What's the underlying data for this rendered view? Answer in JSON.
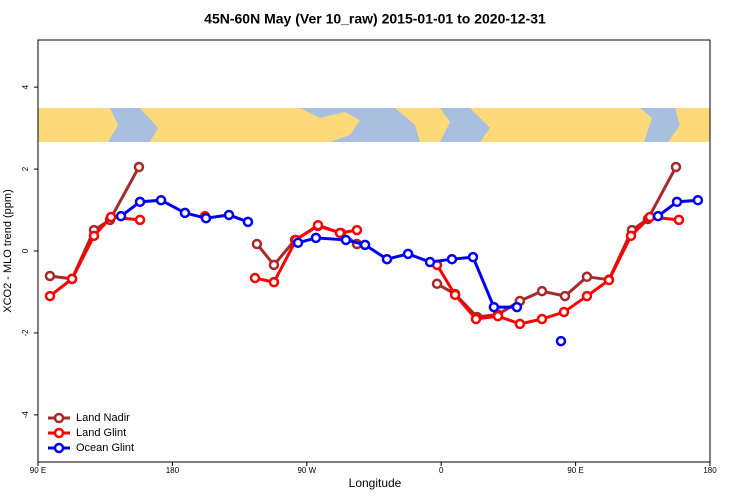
{
  "chart_data": {
    "type": "line",
    "title": "45N-60N May (Ver 10_raw)   2015-01-01 to 2020-12-31",
    "xlabel": "Longitude",
    "ylabel": "XCO2 - MLO trend (ppm)",
    "xlim": [
      90,
      540
    ],
    "ylim": [
      -5.15,
      5.15
    ],
    "xticks": [
      {
        "value": 90,
        "label": "90 E"
      },
      180,
      {
        "value": 270,
        "label": "90 W"
      },
      {
        "value": 360,
        "label": "0"
      },
      {
        "value": 450,
        "label": "90 E"
      },
      {
        "value": 540,
        "label": "180"
      }
    ],
    "yticks": [
      -4,
      -2,
      0,
      2,
      4
    ],
    "legend": "bottom-left",
    "grid": false,
    "series": [
      {
        "name": "Land Nadir",
        "color": "#a52a2a",
        "x": [
          98.0,
          112.8,
          127.5,
          138.2,
          157.6,
          null,
          236.6,
          248.0,
          262.1,
          277.5,
          292.9,
          303.6,
          null,
          357.2,
          369.3,
          384.0,
          398.0,
          412.7,
          427.5,
          442.9,
          457.6,
          472.3,
          487.7,
          498.4,
          517.2
        ],
        "values": [
          -0.61,
          -0.68,
          0.51,
          0.76,
          2.05,
          null,
          0.17,
          -0.34,
          0.27,
          0.61,
          0.44,
          0.17,
          null,
          -0.8,
          -1.05,
          -1.61,
          -1.55,
          -1.22,
          -0.98,
          -1.1,
          -0.63,
          -0.7,
          0.51,
          0.78,
          2.05
        ]
      },
      {
        "name": "Land Glint",
        "color": "#ff0000",
        "x": [
          98.0,
          112.8,
          127.5,
          138.9,
          158.3,
          null,
          201.8,
          null,
          235.3,
          248.0,
          262.8,
          277.5,
          292.2,
          303.6,
          null,
          357.2,
          369.3,
          383.3,
          398.0,
          412.7,
          427.5,
          442.2,
          457.6,
          472.3,
          487.1,
          499.8,
          519.2
        ],
        "values": [
          -1.1,
          -0.68,
          0.37,
          0.83,
          0.76,
          null,
          0.85,
          null,
          -0.66,
          -0.76,
          0.27,
          0.63,
          0.44,
          0.51,
          null,
          -0.34,
          -1.07,
          -1.66,
          -1.59,
          -1.78,
          -1.66,
          -1.49,
          -1.1,
          -0.71,
          0.37,
          0.83,
          0.76
        ]
      },
      {
        "name": "Ocean Glint",
        "color": "#0000ee",
        "x": [
          145.6,
          158.3,
          172.4,
          188.4,
          202.5,
          217.9,
          230.6,
          null,
          264.1,
          276.1,
          296.2,
          309.0,
          323.7,
          337.8,
          352.5,
          367.2,
          381.3,
          395.3,
          410.7,
          null,
          440.2,
          null,
          505.2,
          517.9,
          531.9
        ],
        "values": [
          0.85,
          1.2,
          1.24,
          0.93,
          0.8,
          0.88,
          0.71,
          null,
          0.2,
          0.32,
          0.27,
          0.15,
          -0.2,
          -0.07,
          -0.27,
          -0.2,
          -0.15,
          -1.37,
          -1.37,
          null,
          -2.2,
          null,
          0.85,
          1.2,
          1.24
        ]
      }
    ]
  }
}
